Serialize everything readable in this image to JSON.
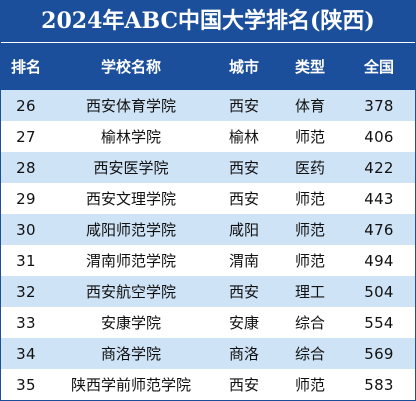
{
  "title": "2024年ABC中国大学排名(陕西)",
  "headers": {
    "rank": "排名",
    "name": "学校名称",
    "city": "城市",
    "type": "类型",
    "score": "全国"
  },
  "rows": [
    {
      "rank": "26",
      "name": "西安体育学院",
      "city": "西安",
      "type": "体育",
      "score": "378"
    },
    {
      "rank": "27",
      "name": "榆林学院",
      "city": "榆林",
      "type": "师范",
      "score": "406"
    },
    {
      "rank": "28",
      "name": "西安医学院",
      "city": "西安",
      "type": "医药",
      "score": "422"
    },
    {
      "rank": "29",
      "name": "西安文理学院",
      "city": "西安",
      "type": "师范",
      "score": "443"
    },
    {
      "rank": "30",
      "name": "咸阳师范学院",
      "city": "咸阳",
      "type": "师范",
      "score": "476"
    },
    {
      "rank": "31",
      "name": "渭南师范学院",
      "city": "渭南",
      "type": "师范",
      "score": "494"
    },
    {
      "rank": "32",
      "name": "西安航空学院",
      "city": "西安",
      "type": "理工",
      "score": "504"
    },
    {
      "rank": "33",
      "name": "安康学院",
      "city": "安康",
      "type": "综合",
      "score": "554"
    },
    {
      "rank": "34",
      "name": "商洛学院",
      "city": "商洛",
      "type": "综合",
      "score": "569"
    },
    {
      "rank": "35",
      "name": "陕西学前师范学院",
      "city": "西安",
      "type": "师范",
      "score": "583"
    }
  ],
  "colors": {
    "header_bg": "#1b4f9c",
    "stripe": "#cfe3f6"
  }
}
